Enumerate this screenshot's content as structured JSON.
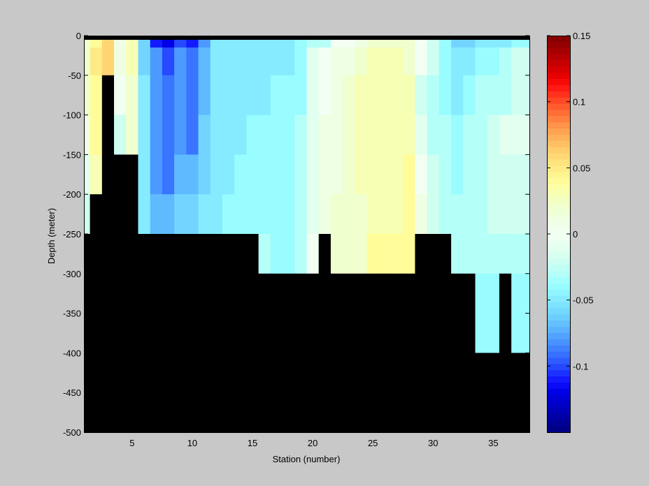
{
  "chart_data": {
    "type": "heatmap",
    "title": "",
    "xlabel": "Station (number)",
    "ylabel": "Depth (meter)",
    "xlim": [
      1,
      38
    ],
    "ylim": [
      -500,
      0
    ],
    "x_ticks": [
      5,
      10,
      15,
      20,
      25,
      30,
      35
    ],
    "y_ticks": [
      0,
      -50,
      -100,
      -150,
      -200,
      -250,
      -300,
      -350,
      -400,
      -450,
      -500
    ],
    "x_cells": [
      1,
      2,
      3,
      4,
      5,
      6,
      7,
      8,
      9,
      10,
      11,
      12,
      13,
      14,
      15,
      16,
      17,
      18,
      19,
      20,
      21,
      22,
      23,
      24,
      25,
      26,
      27,
      28,
      29,
      30,
      31,
      32,
      33,
      34,
      35,
      36,
      37
    ],
    "y_cells": [
      -5,
      -25,
      -75,
      -125,
      -175,
      -225,
      -275,
      -325,
      -375,
      -425,
      -475
    ],
    "values": [
      [
        0.02,
        0.04,
        0.06,
        0.01,
        0.03,
        -0.06,
        -0.11,
        -0.12,
        -0.1,
        -0.11,
        -0.08,
        -0.05,
        -0.05,
        -0.05,
        -0.05,
        -0.05,
        -0.05,
        -0.05,
        -0.04,
        -0.03,
        -0.03,
        0.0,
        0.0,
        0.01,
        0.02,
        0.02,
        0.02,
        0.02,
        0.0,
        -0.02,
        -0.04,
        -0.06,
        -0.06,
        -0.05,
        -0.05,
        -0.05,
        -0.04
      ],
      [
        0.02,
        0.05,
        0.06,
        0.01,
        0.03,
        -0.06,
        -0.08,
        -0.1,
        -0.08,
        -0.09,
        -0.07,
        -0.05,
        -0.05,
        -0.05,
        -0.05,
        -0.05,
        -0.05,
        -0.05,
        -0.04,
        -0.01,
        0.0,
        0.01,
        0.01,
        0.02,
        0.03,
        0.03,
        0.03,
        0.02,
        0.0,
        -0.02,
        -0.04,
        -0.05,
        -0.05,
        -0.04,
        -0.04,
        -0.03,
        -0.02
      ],
      [
        0.02,
        0.04,
        null,
        0.0,
        0.02,
        -0.05,
        -0.08,
        -0.09,
        -0.08,
        -0.09,
        -0.07,
        -0.05,
        -0.05,
        -0.05,
        -0.05,
        -0.05,
        -0.04,
        -0.04,
        -0.04,
        -0.01,
        0.0,
        0.01,
        0.02,
        0.03,
        0.03,
        0.03,
        0.03,
        0.03,
        -0.02,
        -0.03,
        -0.04,
        -0.05,
        -0.04,
        -0.03,
        -0.03,
        -0.03,
        -0.02
      ],
      [
        0.01,
        0.04,
        null,
        -0.02,
        0.02,
        -0.05,
        -0.08,
        -0.09,
        -0.08,
        -0.09,
        -0.06,
        -0.05,
        -0.05,
        -0.05,
        -0.04,
        -0.04,
        -0.04,
        -0.04,
        -0.03,
        -0.01,
        0.01,
        0.01,
        0.02,
        0.03,
        0.03,
        0.03,
        0.03,
        0.03,
        -0.01,
        -0.03,
        -0.03,
        -0.04,
        -0.03,
        -0.03,
        -0.02,
        -0.01,
        -0.01
      ],
      [
        -0.01,
        0.03,
        null,
        null,
        null,
        -0.05,
        -0.08,
        -0.09,
        -0.07,
        -0.07,
        -0.06,
        -0.05,
        -0.05,
        -0.04,
        -0.04,
        -0.04,
        -0.04,
        -0.04,
        -0.03,
        -0.01,
        0.01,
        0.01,
        0.02,
        0.03,
        0.03,
        0.03,
        0.03,
        0.04,
        0.0,
        -0.02,
        -0.03,
        -0.04,
        -0.03,
        -0.03,
        -0.02,
        -0.02,
        -0.02
      ],
      [
        -0.02,
        null,
        null,
        null,
        null,
        -0.05,
        -0.07,
        -0.07,
        -0.06,
        -0.06,
        -0.05,
        -0.05,
        -0.04,
        -0.04,
        -0.04,
        -0.04,
        -0.04,
        -0.04,
        -0.03,
        -0.01,
        0.01,
        0.02,
        0.02,
        0.02,
        0.03,
        0.03,
        0.03,
        0.04,
        0.01,
        -0.02,
        -0.03,
        -0.03,
        -0.03,
        -0.03,
        -0.02,
        -0.02,
        -0.02
      ],
      [
        null,
        null,
        null,
        null,
        null,
        null,
        null,
        null,
        null,
        null,
        null,
        null,
        null,
        null,
        null,
        -0.03,
        -0.04,
        -0.04,
        -0.03,
        0.0,
        null,
        0.02,
        0.02,
        0.02,
        0.04,
        0.04,
        0.04,
        0.04,
        null,
        null,
        null,
        -0.03,
        -0.03,
        -0.03,
        -0.03,
        -0.03,
        -0.03
      ],
      [
        null,
        null,
        null,
        null,
        null,
        null,
        null,
        null,
        null,
        null,
        null,
        null,
        null,
        null,
        null,
        null,
        null,
        null,
        null,
        null,
        null,
        null,
        null,
        null,
        null,
        null,
        null,
        null,
        null,
        null,
        null,
        null,
        null,
        -0.04,
        -0.04,
        null,
        -0.04
      ],
      [
        null,
        null,
        null,
        null,
        null,
        null,
        null,
        null,
        null,
        null,
        null,
        null,
        null,
        null,
        null,
        null,
        null,
        null,
        null,
        null,
        null,
        null,
        null,
        null,
        null,
        null,
        null,
        null,
        null,
        null,
        null,
        null,
        null,
        -0.04,
        -0.04,
        null,
        -0.04
      ],
      [
        null,
        null,
        null,
        null,
        null,
        null,
        null,
        null,
        null,
        null,
        null,
        null,
        null,
        null,
        null,
        null,
        null,
        null,
        null,
        null,
        null,
        null,
        null,
        null,
        null,
        null,
        null,
        null,
        null,
        null,
        null,
        null,
        null,
        null,
        null,
        null,
        null
      ],
      [
        null,
        null,
        null,
        null,
        null,
        null,
        null,
        null,
        null,
        null,
        null,
        null,
        null,
        null,
        null,
        null,
        null,
        null,
        null,
        null,
        null,
        null,
        null,
        null,
        null,
        null,
        null,
        null,
        null,
        null,
        null,
        null,
        null,
        null,
        null,
        null,
        null
      ]
    ],
    "colorbar": {
      "range": [
        -0.15,
        0.15
      ],
      "ticks": [
        0.15,
        0.1,
        0.05,
        0,
        -0.05,
        -0.1
      ],
      "tick_labels": [
        "0.15",
        "0.1",
        "0.05",
        "0",
        "-0.05",
        "-0.1"
      ]
    },
    "missing_color": "#000000",
    "background_color": "#c8c8c8"
  }
}
